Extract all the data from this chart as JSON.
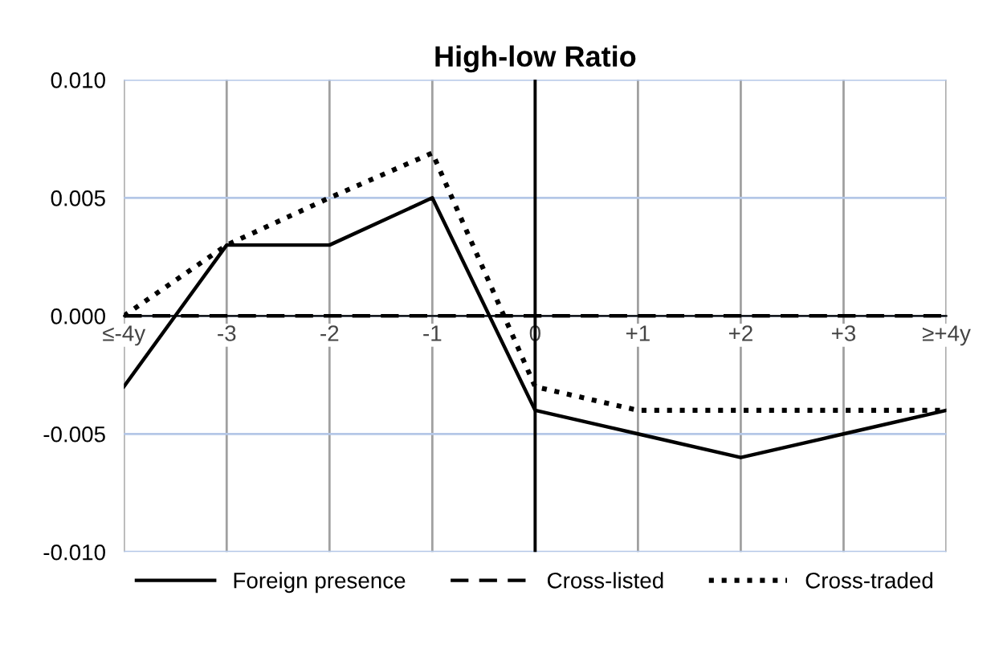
{
  "chart_data": {
    "type": "line",
    "title": "High-low Ratio",
    "categories": [
      "≤-4y",
      "-3",
      "-2",
      "-1",
      "0",
      "+1",
      "+2",
      "+3",
      "≥+4y"
    ],
    "series": [
      {
        "name": "Foreign presence",
        "color": "#000000",
        "line_style": "solid",
        "values": [
          -0.003,
          0.003,
          0.003,
          0.005,
          -0.004,
          -0.005,
          -0.006,
          -0.005,
          -0.004
        ]
      },
      {
        "name": "Cross-listed",
        "color": "#000000",
        "line_style": "dashed",
        "values": [
          0,
          0,
          0,
          0,
          0,
          0,
          0,
          0,
          0
        ]
      },
      {
        "name": "Cross-traded",
        "color": "#000000",
        "line_style": "dotted",
        "values": [
          0,
          0.003,
          0.005,
          0.0069,
          -0.003,
          -0.004,
          -0.004,
          -0.004,
          -0.004
        ]
      }
    ],
    "ylim": [
      -0.01,
      0.01
    ],
    "yticks": [
      {
        "value": -0.01,
        "label": "-0.010"
      },
      {
        "value": -0.005,
        "label": "-0.005"
      },
      {
        "value": 0,
        "label": "0.000"
      },
      {
        "value": 0.005,
        "label": "0.005"
      },
      {
        "value": 0.01,
        "label": "0.010"
      }
    ],
    "ref_lines": [
      {
        "axis": "x",
        "value": "0",
        "color": "#000000"
      }
    ],
    "grid": true,
    "legend": "bottom",
    "marker": "none"
  }
}
